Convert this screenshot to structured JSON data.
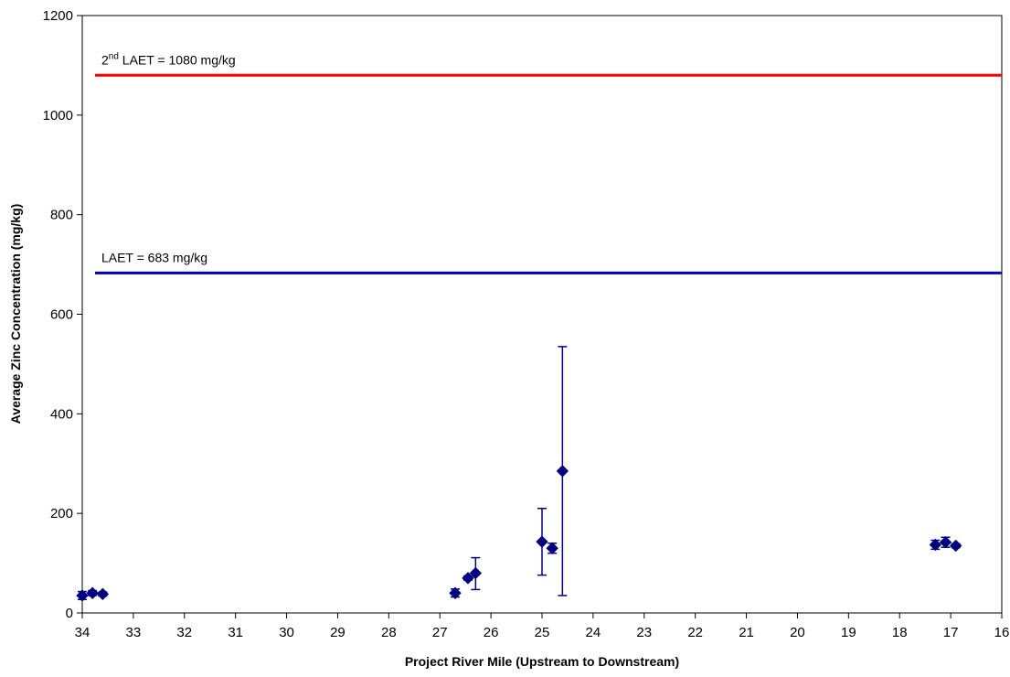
{
  "chart_data": {
    "type": "scatter",
    "xlabel": "Project River Mile (Upstream to Downstream)",
    "ylabel": "Average Zinc Concentration (mg/kg)",
    "xlim": [
      34,
      16
    ],
    "ylim": [
      0,
      1200
    ],
    "x_reversed": true,
    "x_ticks": [
      "34",
      "33",
      "32",
      "31",
      "30",
      "29",
      "28",
      "27",
      "26",
      "25",
      "24",
      "23",
      "22",
      "21",
      "20",
      "19",
      "18",
      "17",
      "16"
    ],
    "y_ticks": [
      "0",
      "200",
      "400",
      "600",
      "800",
      "1000",
      "1200"
    ],
    "grid": false,
    "legend": "none",
    "marker_color": "#000080",
    "points": [
      {
        "x": 34.0,
        "y": 35,
        "lo": 27,
        "hi": 43
      },
      {
        "x": 33.8,
        "y": 40,
        "lo": 35,
        "hi": 45
      },
      {
        "x": 33.6,
        "y": 38,
        "lo": 34,
        "hi": 42
      },
      {
        "x": 26.7,
        "y": 40,
        "lo": 32,
        "hi": 48
      },
      {
        "x": 26.45,
        "y": 70,
        "lo": 66,
        "hi": 74
      },
      {
        "x": 26.3,
        "y": 80,
        "lo": 47,
        "hi": 111
      },
      {
        "x": 25.0,
        "y": 143,
        "lo": 76,
        "hi": 210
      },
      {
        "x": 24.8,
        "y": 130,
        "lo": 120,
        "hi": 140
      },
      {
        "x": 24.6,
        "y": 285,
        "lo": 35,
        "hi": 535
      },
      {
        "x": 17.3,
        "y": 137,
        "lo": 128,
        "hi": 146
      },
      {
        "x": 17.1,
        "y": 142,
        "lo": 132,
        "hi": 152
      },
      {
        "x": 16.9,
        "y": 135,
        "lo": 131,
        "hi": 139
      }
    ],
    "reference_lines": [
      {
        "label_sup": "nd",
        "label_pre": "2",
        "label_post": " LAET = 1080 mg/kg",
        "y": 1080,
        "color": "#ff0000",
        "x_start": 33.75,
        "x_end": 16
      },
      {
        "label_sup": "",
        "label_pre": "",
        "label_post": "LAET = 683 mg/kg",
        "y": 683,
        "color": "#0000cc",
        "x_start": 33.75,
        "x_end": 16
      }
    ]
  }
}
